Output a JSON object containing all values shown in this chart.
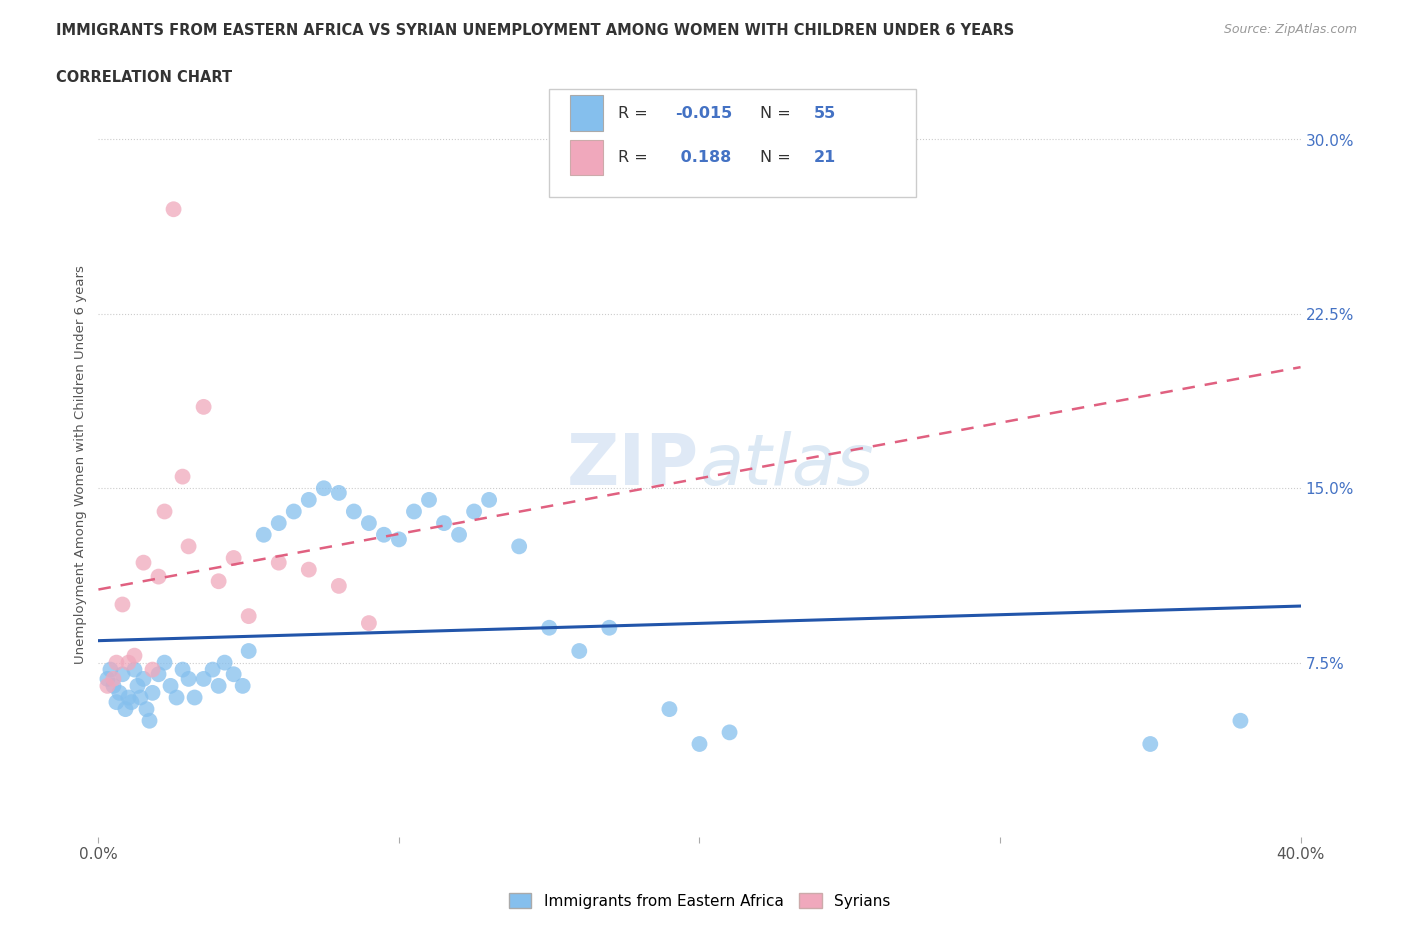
{
  "title_line1": "IMMIGRANTS FROM EASTERN AFRICA VS SYRIAN UNEMPLOYMENT AMONG WOMEN WITH CHILDREN UNDER 6 YEARS",
  "title_line2": "CORRELATION CHART",
  "source": "Source: ZipAtlas.com",
  "ylabel": "Unemployment Among Women with Children Under 6 years",
  "xlim": [
    0.0,
    0.4
  ],
  "ylim": [
    0.0,
    0.32
  ],
  "ytick_right_labels": [
    "7.5%",
    "15.0%",
    "22.5%",
    "30.0%"
  ],
  "ytick_right_vals": [
    0.075,
    0.15,
    0.225,
    0.3
  ],
  "color_blue": "#85bfed",
  "color_pink": "#f0a8bc",
  "trendline_blue_color": "#2255aa",
  "trendline_pink_color": "#e06080",
  "blue_points_x": [
    0.003,
    0.004,
    0.005,
    0.006,
    0.007,
    0.008,
    0.009,
    0.01,
    0.011,
    0.012,
    0.013,
    0.014,
    0.015,
    0.016,
    0.017,
    0.018,
    0.02,
    0.022,
    0.024,
    0.026,
    0.028,
    0.03,
    0.032,
    0.035,
    0.038,
    0.04,
    0.042,
    0.045,
    0.048,
    0.05,
    0.055,
    0.06,
    0.065,
    0.07,
    0.075,
    0.08,
    0.085,
    0.09,
    0.095,
    0.1,
    0.105,
    0.11,
    0.115,
    0.12,
    0.125,
    0.13,
    0.14,
    0.15,
    0.16,
    0.17,
    0.19,
    0.2,
    0.21,
    0.35,
    0.38
  ],
  "blue_points_y": [
    0.068,
    0.072,
    0.065,
    0.058,
    0.062,
    0.07,
    0.055,
    0.06,
    0.058,
    0.072,
    0.065,
    0.06,
    0.068,
    0.055,
    0.05,
    0.062,
    0.07,
    0.075,
    0.065,
    0.06,
    0.072,
    0.068,
    0.06,
    0.068,
    0.072,
    0.065,
    0.075,
    0.07,
    0.065,
    0.08,
    0.13,
    0.135,
    0.14,
    0.145,
    0.15,
    0.148,
    0.14,
    0.135,
    0.13,
    0.128,
    0.14,
    0.145,
    0.135,
    0.13,
    0.14,
    0.145,
    0.125,
    0.09,
    0.08,
    0.09,
    0.055,
    0.04,
    0.045,
    0.04,
    0.05
  ],
  "pink_points_x": [
    0.003,
    0.005,
    0.006,
    0.008,
    0.01,
    0.012,
    0.015,
    0.018,
    0.02,
    0.022,
    0.025,
    0.028,
    0.03,
    0.035,
    0.04,
    0.045,
    0.05,
    0.06,
    0.07,
    0.08,
    0.09
  ],
  "pink_points_y": [
    0.065,
    0.068,
    0.075,
    0.1,
    0.075,
    0.078,
    0.118,
    0.072,
    0.112,
    0.14,
    0.27,
    0.155,
    0.125,
    0.185,
    0.11,
    0.12,
    0.095,
    0.118,
    0.115,
    0.108,
    0.092
  ]
}
